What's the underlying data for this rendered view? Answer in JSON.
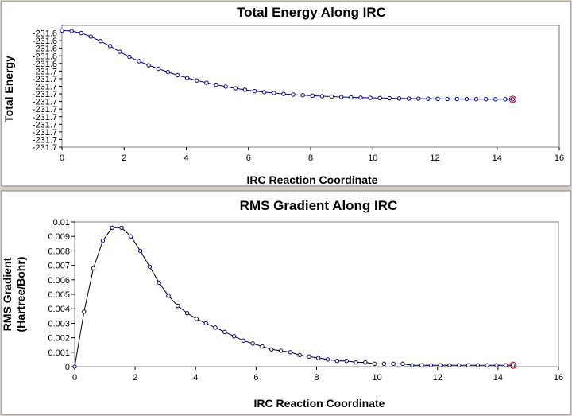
{
  "chart_data": [
    {
      "type": "line",
      "title": "Total Energy Along IRC",
      "xlabel": "IRC Reaction Coordinate",
      "ylabel": "Total Energy",
      "xlim": [
        0,
        16
      ],
      "xticks": [
        0,
        2,
        4,
        6,
        8,
        10,
        12,
        14,
        16
      ],
      "ylim": [
        -231.7125,
        -231.5925
      ],
      "yticks": [
        -231.6,
        -231.6075,
        -231.615,
        -231.6225,
        -231.63,
        -231.6375,
        -231.645,
        -231.6525,
        -231.66,
        -231.6675,
        -231.675,
        -231.6825,
        -231.69,
        -231.6975,
        -231.705,
        -231.7125
      ],
      "yticklabels": [
        "-231.6",
        "-231.6",
        "-231.6",
        "-231.6",
        "-231.6",
        "-231.7",
        "-231.7",
        "-231.7",
        "-231.7",
        "-231.7",
        "-231.7",
        "-231.7",
        "-231.7",
        "-231.7",
        "-231.7",
        "-231.7"
      ],
      "line_color": "#000080",
      "marker_color": "#000080",
      "highlight_color": "#cc0000",
      "x": [
        0,
        0.31,
        0.62,
        0.93,
        1.24,
        1.55,
        1.86,
        2.17,
        2.48,
        2.79,
        3.1,
        3.41,
        3.72,
        4.03,
        4.34,
        4.65,
        4.96,
        5.27,
        5.58,
        5.89,
        6.2,
        6.51,
        6.82,
        7.13,
        7.44,
        7.75,
        8.06,
        8.37,
        8.68,
        8.99,
        9.3,
        9.61,
        9.92,
        10.23,
        10.54,
        10.85,
        11.16,
        11.47,
        11.78,
        12.09,
        12.4,
        12.71,
        13.02,
        13.33,
        13.64,
        13.95,
        14.26,
        14.5
      ],
      "y": [
        -231.5975,
        -231.598,
        -231.6,
        -231.6035,
        -231.608,
        -231.6128,
        -231.6185,
        -231.6235,
        -231.6278,
        -231.6318,
        -231.6352,
        -231.6385,
        -231.6415,
        -231.6443,
        -231.6468,
        -231.649,
        -231.651,
        -231.6528,
        -231.6545,
        -231.656,
        -231.6573,
        -231.6583,
        -231.6592,
        -231.66,
        -231.6607,
        -231.6613,
        -231.6618,
        -231.6623,
        -231.6627,
        -231.6631,
        -231.6634,
        -231.6637,
        -231.6639,
        -231.6641,
        -231.6643,
        -231.6645,
        -231.6646,
        -231.6647,
        -231.6648,
        -231.6649,
        -231.665,
        -231.6651,
        -231.6651,
        -231.6652,
        -231.6652,
        -231.6653,
        -231.6653,
        -231.6653
      ]
    },
    {
      "type": "line",
      "title": "RMS Gradient Along IRC",
      "xlabel": "IRC Reaction Coordinate",
      "ylabel_lines": [
        "RMS Gradient",
        "(Hartree/Bohr)"
      ],
      "xlim": [
        0,
        16
      ],
      "xticks": [
        0,
        2,
        4,
        6,
        8,
        10,
        12,
        14,
        16
      ],
      "ylim": [
        0,
        0.01
      ],
      "yticks": [
        0,
        0.001,
        0.002,
        0.003,
        0.004,
        0.005,
        0.006,
        0.007,
        0.008,
        0.009,
        0.01
      ],
      "yticklabels": [
        "0",
        "0.001",
        "0.002",
        "0.003",
        "0.004",
        "0.005",
        "0.006",
        "0.007",
        "0.008",
        "0.009",
        "0.01"
      ],
      "line_color": "#000000",
      "marker_color": "#000080",
      "highlight_color": "#cc0000",
      "x": [
        0,
        0.31,
        0.62,
        0.93,
        1.24,
        1.55,
        1.86,
        2.17,
        2.48,
        2.79,
        3.1,
        3.41,
        3.72,
        4.03,
        4.34,
        4.65,
        4.96,
        5.27,
        5.58,
        5.89,
        6.2,
        6.51,
        6.82,
        7.13,
        7.44,
        7.75,
        8.06,
        8.37,
        8.68,
        8.99,
        9.3,
        9.61,
        9.92,
        10.23,
        10.54,
        10.85,
        11.16,
        11.47,
        11.78,
        12.09,
        12.4,
        12.71,
        13.02,
        13.33,
        13.64,
        13.95,
        14.26,
        14.5
      ],
      "y": [
        0,
        0.0038,
        0.0068,
        0.0087,
        0.0096,
        0.0096,
        0.009,
        0.008,
        0.0069,
        0.0058,
        0.0049,
        0.0042,
        0.0037,
        0.0033,
        0.003,
        0.0027,
        0.0024,
        0.0021,
        0.0018,
        0.0016,
        0.0014,
        0.0012,
        0.0011,
        0.001,
        0.0008,
        0.0007,
        0.0006,
        0.0005,
        0.0004,
        0.0004,
        0.0003,
        0.0003,
        0.0002,
        0.0002,
        0.0002,
        0.0002,
        0.0001,
        0.0001,
        0.0001,
        0.0001,
        0.0001,
        0.0001,
        0.0001,
        0.0001,
        0.0001,
        0.0001,
        0.0001,
        0.0001
      ]
    }
  ]
}
